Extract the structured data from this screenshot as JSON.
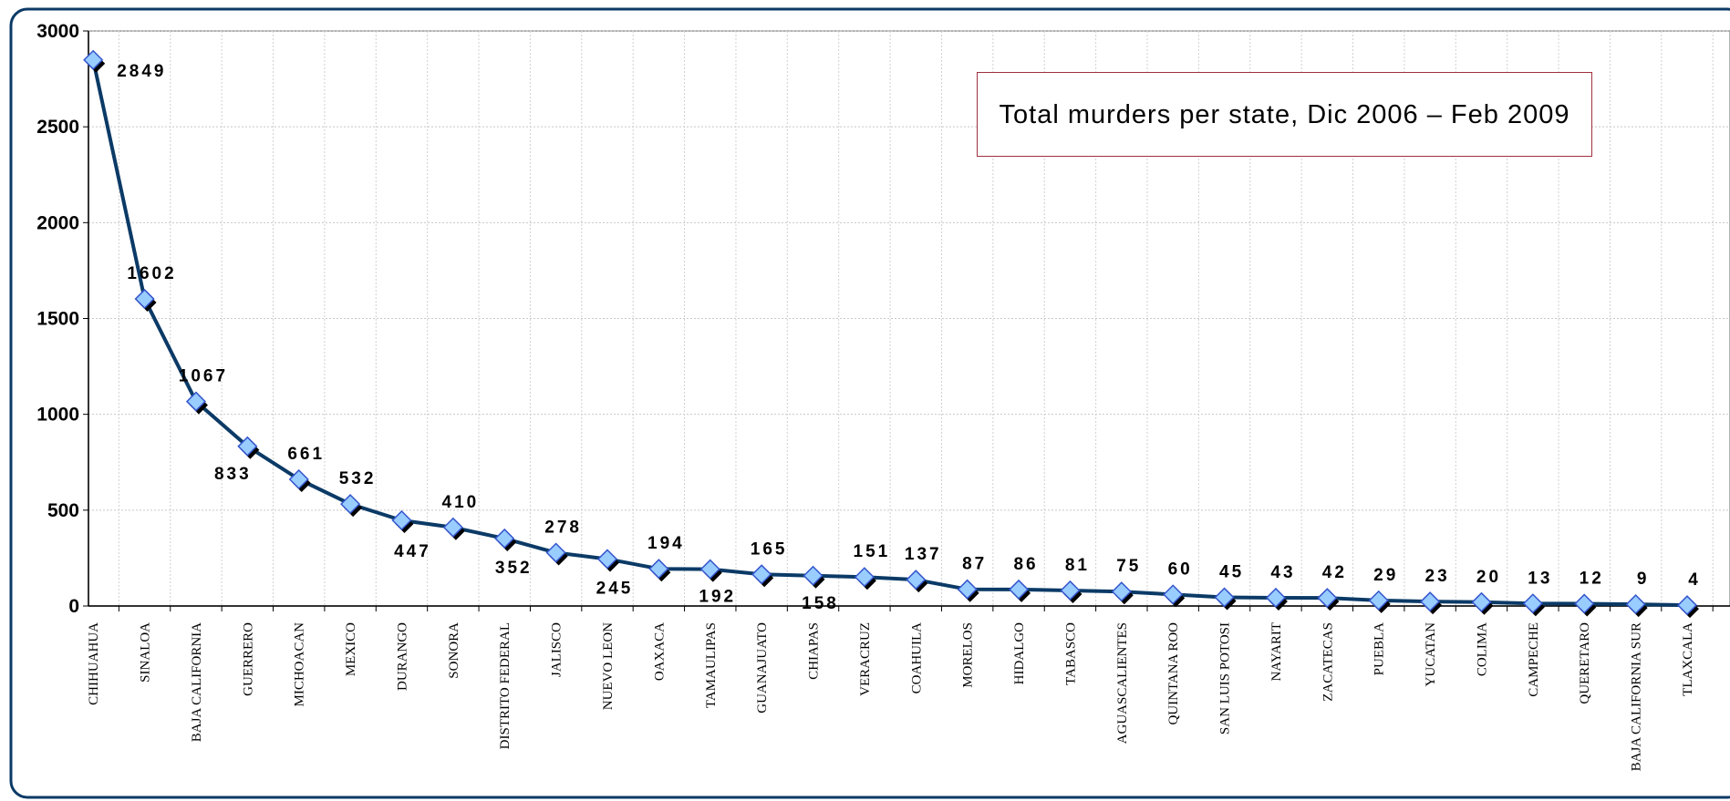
{
  "chart_data": {
    "type": "line",
    "title": "Total murders per state, Dic 2006 – Feb 2009",
    "categories": [
      "CHIHUAHUA",
      "SINALOA",
      "BAJA CALIFORNIA",
      "GUERRERO",
      "MICHOACAN",
      "MEXICO",
      "DURANGO",
      "SONORA",
      "DISTRITO FEDERAL",
      "JALISCO",
      "NUEVO LEON",
      "OAXACA",
      "TAMAULIPAS",
      "GUANAJUATO",
      "CHIAPAS",
      "VERACRUZ",
      "COAHUILA",
      "MORELOS",
      "HIDALGO",
      "TABASCO",
      "AGUASCALIENTES",
      "QUINTANA ROO",
      "SAN LUIS POTOSI",
      "NAYARIT",
      "ZACATECAS",
      "PUEBLA",
      "YUCATAN",
      "COLIMA",
      "CAMPECHE",
      "QUERETARO",
      "BAJA CALIFORNIA SUR",
      "TLAXCALA"
    ],
    "series": [
      {
        "color": "#0b3a66",
        "marker_color": "#99ccff",
        "values": [
          2849,
          1602,
          1067,
          833,
          661,
          532,
          447,
          410,
          352,
          278,
          245,
          194,
          192,
          165,
          158,
          151,
          137,
          87,
          86,
          81,
          75,
          60,
          45,
          43,
          42,
          29,
          23,
          20,
          13,
          12,
          9,
          4
        ]
      }
    ],
    "ylim": [
      0,
      3000
    ],
    "yticks": [
      0,
      500,
      1000,
      1500,
      2000,
      2500,
      3000
    ],
    "grid": true
  }
}
